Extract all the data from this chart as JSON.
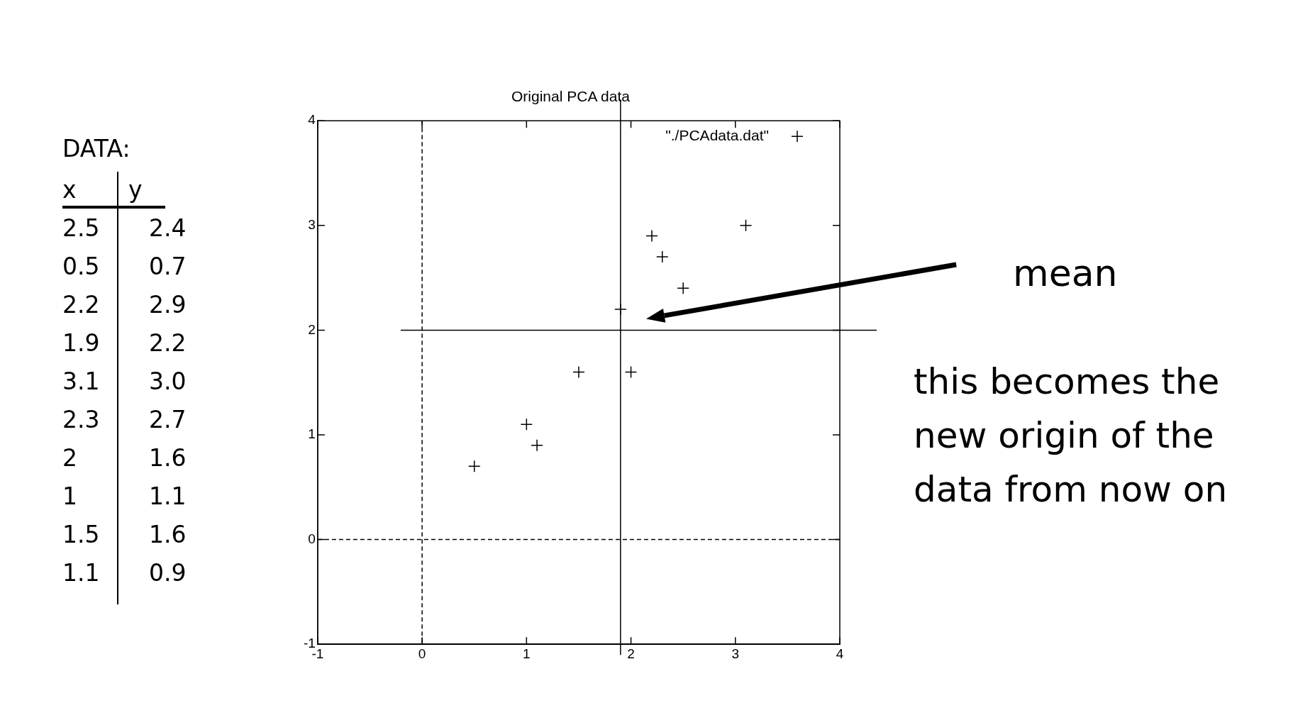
{
  "chart_data": [
    {
      "type": "other",
      "title": "DATA:",
      "annotations": [
        "x",
        "y",
        "2.5",
        "2.4",
        "0.5",
        "0.7",
        "2.2",
        "2.9",
        "1.9",
        "2.2",
        "3.1",
        "3.0",
        "2.3",
        "2.7",
        "2",
        "1.6",
        "1",
        "1.1",
        "1.5",
        "1.6",
        "1.1",
        "0.9"
      ]
    },
    {
      "type": "scatter",
      "title": "Original PCA data",
      "x": [
        2.5,
        0.5,
        2.2,
        1.9,
        3.1,
        2.3,
        2,
        1,
        1.5,
        1.1
      ],
      "series": [
        {
          "name": "\"./PCAdata.dat\"",
          "color": "#000000",
          "values": [
            2.4,
            0.7,
            2.9,
            2.2,
            3.0,
            2.7,
            1.6,
            1.1,
            1.6,
            0.9
          ]
        }
      ],
      "xlim": [
        -1,
        4
      ],
      "xticks": [
        -1,
        0,
        1,
        2,
        3,
        4
      ],
      "ylim": [
        -1,
        4
      ],
      "yticks": [
        -1,
        0,
        1,
        2,
        3,
        4
      ],
      "grid": false,
      "legend": "top right",
      "marker": "cross",
      "ref_lines": [
        {
          "axis": "x",
          "value": 1.9
        },
        {
          "axis": "y",
          "value": 2
        },
        {
          "axis": "x",
          "value": 0,
          "line_style": "dashed"
        },
        {
          "axis": "y",
          "value": 0,
          "line_style": "dashed"
        }
      ],
      "annotations": [
        "mean",
        "this becomes the new origin of the data from now on"
      ]
    }
  ]
}
